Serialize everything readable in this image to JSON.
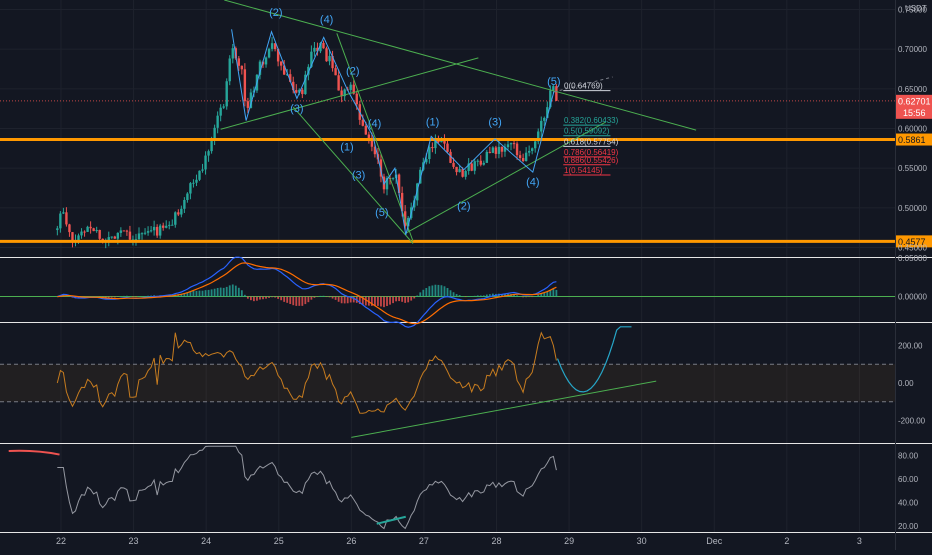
{
  "chart_data": {
    "type": "candlestick",
    "currency": "USDT",
    "title": "",
    "price_axis": {
      "ticks": [
        "0.75000",
        "0.70000",
        "0.65000",
        "0.60000",
        "0.55000",
        "0.50000",
        "0.45000"
      ],
      "ylim": [
        0.438,
        0.762
      ]
    },
    "x_axis": {
      "ticks": [
        {
          "label": "22",
          "day": 0
        },
        {
          "label": "23",
          "day": 1
        },
        {
          "label": "24",
          "day": 2
        },
        {
          "label": "25",
          "day": 3
        },
        {
          "label": "26",
          "day": 4
        },
        {
          "label": "27",
          "day": 5
        },
        {
          "label": "28",
          "day": 6
        },
        {
          "label": "29",
          "day": 7
        },
        {
          "label": "30",
          "day": 8
        },
        {
          "label": "Dec",
          "day": 9
        },
        {
          "label": "2",
          "day": 10
        },
        {
          "label": "3",
          "day": 11
        }
      ],
      "xlim": [
        -0.84,
        11.49
      ]
    },
    "price_path": [
      [
        -0.05,
        0.472
      ],
      [
        0.0,
        0.5
      ],
      [
        0.15,
        0.455
      ],
      [
        0.4,
        0.48
      ],
      [
        0.6,
        0.456
      ],
      [
        0.85,
        0.475
      ],
      [
        1.0,
        0.462
      ],
      [
        1.25,
        0.47
      ],
      [
        1.5,
        0.476
      ],
      [
        1.75,
        0.52
      ],
      [
        1.95,
        0.55
      ],
      [
        2.1,
        0.6
      ],
      [
        2.25,
        0.635
      ],
      [
        2.35,
        0.71
      ],
      [
        2.5,
        0.67
      ],
      [
        2.55,
        0.62
      ],
      [
        2.75,
        0.68
      ],
      [
        2.9,
        0.705
      ],
      [
        3.1,
        0.665
      ],
      [
        3.3,
        0.64
      ],
      [
        3.45,
        0.69
      ],
      [
        3.55,
        0.705
      ],
      [
        3.7,
        0.685
      ],
      [
        3.85,
        0.645
      ],
      [
        4.0,
        0.65
      ],
      [
        4.15,
        0.6
      ],
      [
        4.3,
        0.575
      ],
      [
        4.45,
        0.53
      ],
      [
        4.6,
        0.545
      ],
      [
        4.75,
        0.468
      ],
      [
        4.9,
        0.53
      ],
      [
        5.1,
        0.58
      ],
      [
        5.25,
        0.59
      ],
      [
        5.4,
        0.552
      ],
      [
        5.55,
        0.545
      ],
      [
        5.7,
        0.555
      ],
      [
        5.9,
        0.568
      ],
      [
        6.05,
        0.572
      ],
      [
        6.2,
        0.58
      ],
      [
        6.35,
        0.563
      ],
      [
        6.5,
        0.575
      ],
      [
        6.6,
        0.6
      ],
      [
        6.72,
        0.64
      ],
      [
        6.78,
        0.648
      ],
      [
        6.84,
        0.638
      ]
    ],
    "horizontal_levels": [
      {
        "price": 0.5861,
        "label": "0.5861",
        "color": "#ff9800"
      },
      {
        "price": 0.4577,
        "label": "0.4577",
        "color": "#ff9800"
      }
    ],
    "last_price": {
      "label": "0.62701",
      "countdown": "15:56",
      "color": "#f23645"
    },
    "fibonacci": [
      {
        "label": "0(0.64769)",
        "price": 0.64769,
        "color": "#d1d4dc"
      },
      {
        "label": "0.382(0.60433)",
        "price": 0.60433,
        "color": "#26a69a"
      },
      {
        "label": "0.5(0.59092)",
        "price": 0.59092,
        "color": "#26a69a"
      },
      {
        "label": "0.618(0.57754)",
        "price": 0.57754,
        "color": "#d1d4dc"
      },
      {
        "label": "0.786(0.56419)",
        "price": 0.56419,
        "color": "#f23645"
      },
      {
        "label": "0.886(0.55426)",
        "price": 0.55426,
        "color": "#f23645"
      },
      {
        "label": "1(0.54145)",
        "price": 0.54145,
        "color": "#f23645"
      }
    ],
    "wave_labels": [
      {
        "text": "(2)",
        "day": 2.96,
        "price": 0.742
      },
      {
        "text": "(4)",
        "day": 3.66,
        "price": 0.733
      },
      {
        "text": "(2)",
        "day": 4.02,
        "price": 0.668
      },
      {
        "text": "(3)",
        "day": 3.25,
        "price": 0.621
      },
      {
        "text": "(4)",
        "day": 4.32,
        "price": 0.602
      },
      {
        "text": "(1)",
        "day": 3.94,
        "price": 0.572
      },
      {
        "text": "(3)",
        "day": 4.1,
        "price": 0.537
      },
      {
        "text": "(5)",
        "day": 4.42,
        "price": 0.49
      },
      {
        "text": "(1)",
        "day": 5.12,
        "price": 0.604
      },
      {
        "text": "(3)",
        "day": 5.98,
        "price": 0.604
      },
      {
        "text": "(2)",
        "day": 5.55,
        "price": 0.498
      },
      {
        "text": "(4)",
        "day": 6.5,
        "price": 0.528
      },
      {
        "text": "(5)",
        "day": 6.79,
        "price": 0.655
      }
    ],
    "macd_panel": {
      "ticks": [
        "0.05000",
        "0.00000"
      ],
      "ylim": [
        -0.033,
        0.05
      ]
    },
    "cci_panel": {
      "ticks": [
        "200.00",
        "0.00",
        "-200.00"
      ],
      "ylim": [
        -320,
        320
      ],
      "band": [
        -100,
        100
      ]
    },
    "rsi_panel": {
      "ticks": [
        "80.00",
        "60.00",
        "40.00",
        "20.00"
      ],
      "ylim": [
        15,
        90
      ]
    },
    "colors": {
      "background": "#131722",
      "up": "#26a69a",
      "down": "#ef5350",
      "trendline": "#4caf50",
      "wave": "#42a5f5",
      "level": "#ff9800",
      "macd": "#2962ff",
      "signal": "#ff6d00",
      "cci": "#c77c1f",
      "rsi": "#9598a1",
      "separator": "#e6e6e6",
      "text": "#b2b5be"
    }
  }
}
